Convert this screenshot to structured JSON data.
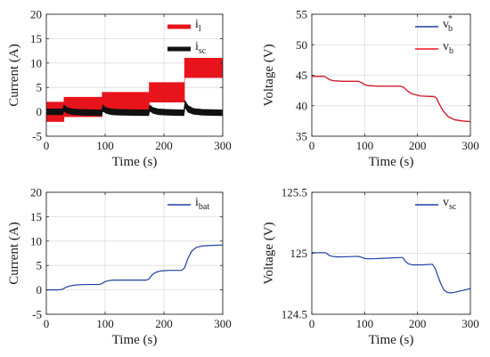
{
  "chart_data": [
    {
      "type": "line",
      "xlabel": "Time (s)",
      "ylabel": "Current (A)",
      "xlim": [
        0,
        300
      ],
      "ylim": [
        -5,
        20
      ],
      "xticks": [
        "0",
        "100",
        "200",
        "300"
      ],
      "yticks": [
        "-5",
        "0",
        "5",
        "10",
        "15",
        "20"
      ],
      "grid": true,
      "legend_position": "top-right",
      "series": [
        {
          "name": "i_l",
          "legend_main": "i",
          "legend_sub": "l",
          "color": "#e8141c",
          "style": "band",
          "x": [
            0,
            30,
            30,
            95,
            95,
            175,
            175,
            235,
            235,
            300
          ],
          "upper": [
            2,
            2,
            3,
            3,
            4,
            4,
            6,
            6,
            11,
            11
          ],
          "lower": [
            -2,
            -2,
            -1,
            -1,
            0,
            0,
            2,
            2,
            7,
            7
          ]
        },
        {
          "name": "i_sc",
          "legend_main": "i",
          "legend_sub": "sc",
          "color": "#111111",
          "style": "band",
          "x": [
            0,
            28,
            30,
            35,
            45,
            60,
            94,
            96,
            101,
            110,
            125,
            174,
            176,
            181,
            190,
            205,
            234,
            236,
            241,
            250,
            265,
            300
          ],
          "upper": [
            0.6,
            0.6,
            1.4,
            0.9,
            0.6,
            0.5,
            0.4,
            1.4,
            0.9,
            0.6,
            0.5,
            0.4,
            1.4,
            0.9,
            0.6,
            0.5,
            0.4,
            2.3,
            1.3,
            0.7,
            0.5,
            0.4
          ],
          "lower": [
            -0.6,
            -0.6,
            0.2,
            -0.3,
            -0.6,
            -0.7,
            -0.8,
            0.2,
            -0.3,
            -0.6,
            -0.7,
            -0.8,
            0.2,
            -0.3,
            -0.6,
            -0.7,
            -0.8,
            0.9,
            -0.1,
            -0.5,
            -0.7,
            -0.8
          ]
        }
      ]
    },
    {
      "type": "line",
      "xlabel": "Time (s)",
      "ylabel": "Voltage (V)",
      "xlim": [
        0,
        300
      ],
      "ylim": [
        35,
        55
      ],
      "xticks": [
        "0",
        "100",
        "200",
        "300"
      ],
      "yticks": [
        "35",
        "40",
        "45",
        "50",
        "55"
      ],
      "grid": true,
      "legend_position": "top-right",
      "series": [
        {
          "name": "v_b*",
          "legend_main": "v",
          "legend_sub": "b",
          "legend_sup": "*",
          "color": "#1f3fa0",
          "x": [
            0,
            24,
            28,
            33,
            40,
            60,
            88,
            94,
            99,
            106,
            125,
            168,
            174,
            180,
            188,
            205,
            232,
            236,
            241,
            248,
            258,
            270,
            285,
            300
          ],
          "y": [
            44.8,
            44.8,
            44.6,
            44.3,
            44.1,
            44.0,
            44.0,
            43.8,
            43.5,
            43.3,
            43.2,
            43.2,
            43.0,
            42.5,
            42.0,
            41.6,
            41.5,
            41.2,
            40.3,
            39.2,
            38.2,
            37.7,
            37.5,
            37.4
          ]
        },
        {
          "name": "v_b",
          "legend_main": "v",
          "legend_sub": "b",
          "color": "#e8141c",
          "x": [
            0,
            24,
            28,
            33,
            40,
            60,
            88,
            94,
            99,
            106,
            125,
            168,
            174,
            180,
            188,
            205,
            232,
            236,
            241,
            248,
            258,
            270,
            285,
            300
          ],
          "y": [
            44.8,
            44.8,
            44.6,
            44.3,
            44.1,
            44.0,
            44.0,
            43.8,
            43.5,
            43.3,
            43.2,
            43.2,
            43.0,
            42.5,
            42.0,
            41.6,
            41.5,
            41.2,
            40.3,
            39.2,
            38.2,
            37.7,
            37.5,
            37.4
          ]
        }
      ]
    },
    {
      "type": "line",
      "xlabel": "Time (s)",
      "ylabel": "Current (A)",
      "xlim": [
        0,
        300
      ],
      "ylim": [
        -5,
        20
      ],
      "xticks": [
        "0",
        "100",
        "200",
        "300"
      ],
      "yticks": [
        "-5",
        "0",
        "5",
        "10",
        "15",
        "20"
      ],
      "grid": true,
      "legend_position": "top-right",
      "series": [
        {
          "name": "i_bat",
          "legend_main": "i",
          "legend_sub": "bat",
          "color": "#1f3fa0",
          "x": [
            0,
            20,
            27,
            33,
            40,
            50,
            65,
            90,
            95,
            100,
            106,
            115,
            130,
            170,
            175,
            180,
            186,
            195,
            210,
            230,
            235,
            241,
            247,
            255,
            265,
            280,
            300
          ],
          "y": [
            0.0,
            0.0,
            0.1,
            0.5,
            0.8,
            1.0,
            1.1,
            1.1,
            1.3,
            1.7,
            1.9,
            2.0,
            2.0,
            2.0,
            2.3,
            3.1,
            3.6,
            3.9,
            4.0,
            4.0,
            4.5,
            6.5,
            7.9,
            8.7,
            9.0,
            9.1,
            9.2
          ]
        }
      ]
    },
    {
      "type": "line",
      "xlabel": "Time (s)",
      "ylabel": "Voltage (V)",
      "xlim": [
        0,
        300
      ],
      "ylim": [
        124.5,
        125.5
      ],
      "xticks": [
        "0",
        "100",
        "200",
        "300"
      ],
      "yticks": [
        "124.5",
        "125",
        "125.5"
      ],
      "grid": true,
      "legend_position": "top-right",
      "series": [
        {
          "name": "v_sc",
          "legend_main": "v",
          "legend_sub": "sc",
          "color": "#1f3fa0",
          "x": [
            0,
            25,
            28,
            32,
            38,
            50,
            70,
            88,
            92,
            98,
            104,
            115,
            140,
            165,
            172,
            176,
            182,
            190,
            210,
            228,
            233,
            238,
            244,
            250,
            256,
            262,
            270,
            285,
            300
          ],
          "y": [
            125.005,
            125.005,
            125.0,
            124.985,
            124.975,
            124.97,
            124.972,
            124.975,
            124.97,
            124.96,
            124.955,
            124.955,
            124.96,
            124.965,
            124.965,
            124.94,
            124.915,
            124.905,
            124.905,
            124.91,
            124.88,
            124.82,
            124.75,
            124.7,
            124.68,
            124.675,
            124.68,
            124.695,
            124.71
          ]
        }
      ]
    }
  ]
}
